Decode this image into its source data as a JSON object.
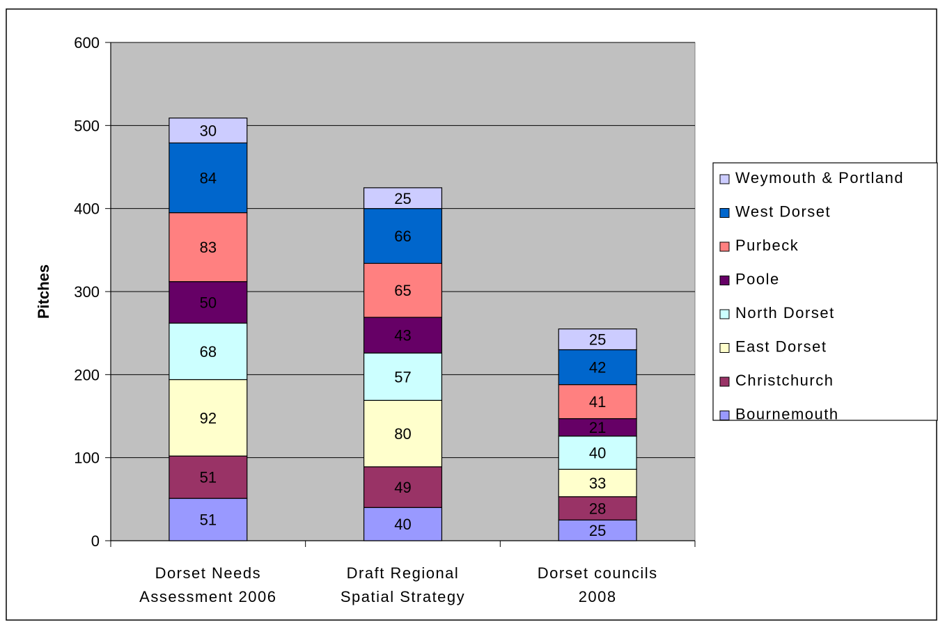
{
  "chart_data": {
    "type": "bar",
    "stacked": true,
    "title": "",
    "xlabel": "",
    "ylabel": "Pitches",
    "ylim": [
      0,
      600
    ],
    "yticks": [
      0,
      100,
      200,
      300,
      400,
      500,
      600
    ],
    "grid": true,
    "legend_position": "right",
    "categories": [
      [
        "Dorset Needs",
        "Assessment 2006"
      ],
      [
        "Draft Regional",
        "Spatial Strategy"
      ],
      [
        "Dorset councils",
        "2008"
      ]
    ],
    "series": [
      {
        "name": "Bournemouth",
        "color": "#9999ff",
        "values": [
          51,
          40,
          25
        ]
      },
      {
        "name": "Christchurch",
        "color": "#993366",
        "values": [
          51,
          49,
          28
        ]
      },
      {
        "name": "East Dorset",
        "color": "#ffffcc",
        "values": [
          92,
          80,
          33
        ]
      },
      {
        "name": "North Dorset",
        "color": "#ccffff",
        "values": [
          68,
          57,
          40
        ]
      },
      {
        "name": "Poole",
        "color": "#660066",
        "values": [
          50,
          43,
          21
        ]
      },
      {
        "name": "Purbeck",
        "color": "#ff8080",
        "values": [
          83,
          65,
          41
        ]
      },
      {
        "name": "West Dorset",
        "color": "#0066cc",
        "values": [
          84,
          66,
          42
        ]
      },
      {
        "name": "Weymouth & Portland",
        "color": "#ccccff",
        "values": [
          30,
          25,
          25
        ]
      }
    ],
    "plot_background": "#c0c0c0"
  }
}
